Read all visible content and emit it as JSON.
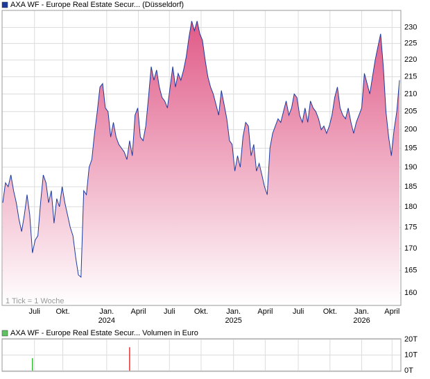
{
  "chart_data": [
    {
      "type": "area",
      "legend": "AXA WF - Europe Real Estate Secur... (Düsseldorf)",
      "annotation": "1 Tick = 1 Woche",
      "color": "#1c3a9e",
      "fill_top": "#e05a88",
      "fill_bottom": "#ffffff",
      "log_scale": true,
      "grid": true,
      "values": [
        181,
        186,
        185,
        188,
        184,
        181,
        177,
        174,
        178,
        183,
        178,
        169,
        172,
        173,
        181,
        188,
        186,
        181,
        184,
        176,
        182,
        180,
        185,
        181,
        178,
        175,
        173,
        168,
        164,
        163.5,
        184,
        183,
        190,
        192,
        199,
        205,
        212,
        213,
        206,
        205,
        198,
        202,
        198,
        196,
        195,
        194,
        192,
        197,
        193,
        204,
        206,
        198,
        197,
        201,
        209,
        218,
        214,
        217,
        212,
        209,
        208,
        206,
        212,
        218,
        212,
        216,
        214,
        217,
        221,
        227,
        232,
        229,
        232,
        228,
        226,
        220,
        215,
        212,
        210,
        207,
        204,
        211,
        207,
        203,
        197,
        196,
        189,
        193,
        190,
        198,
        202,
        201,
        193,
        196,
        189,
        191,
        188,
        185,
        183,
        195,
        199,
        201,
        203,
        202,
        205,
        208,
        204,
        206,
        210,
        209,
        204,
        202,
        206,
        202,
        208,
        206,
        205,
        203,
        200,
        201,
        199,
        201,
        204,
        209,
        212,
        206,
        204,
        203,
        206,
        202,
        199,
        202,
        204,
        206,
        216,
        213,
        210,
        215,
        220,
        224,
        228,
        218,
        205,
        198,
        193,
        200,
        205,
        214
      ],
      "xlim": [
        0,
        147
      ],
      "xticks": [
        {
          "value": 11.75,
          "label": "Juli"
        },
        {
          "value": 22.25,
          "label": "Okt."
        },
        {
          "value": 38.5,
          "label": "Jan.",
          "year": "2024"
        },
        {
          "value": 50.25,
          "label": "April"
        },
        {
          "value": 61.75,
          "label": "Juli"
        },
        {
          "value": 73.5,
          "label": "Okt."
        },
        {
          "value": 85.5,
          "label": "Jan.",
          "year": "2025"
        },
        {
          "value": 97.25,
          "label": "April"
        },
        {
          "value": 109.5,
          "label": "Juli"
        },
        {
          "value": 121.25,
          "label": "Okt."
        },
        {
          "value": 133,
          "label": "Jan.",
          "year": "2026"
        },
        {
          "value": 144.25,
          "label": "April"
        }
      ],
      "ylim": [
        157.3,
        235.4
      ],
      "yticks": [
        160,
        165,
        170,
        175,
        180,
        185,
        190,
        195,
        200,
        205,
        210,
        215,
        220,
        225,
        230
      ]
    },
    {
      "type": "volume",
      "legend": "AXA WF - Europe Real Estate Secur... Volumen in Euro",
      "legend_color": "#5fc45f",
      "grid": true,
      "x": [
        11,
        47
      ],
      "values": [
        8000,
        15000
      ],
      "colors": [
        "#33bb33",
        "#dd3333"
      ],
      "xlim": [
        0,
        147
      ],
      "ylim": [
        0,
        20000
      ],
      "yticks": [
        {
          "value": 0,
          "label": "0T"
        },
        {
          "value": 10000,
          "label": "10T"
        },
        {
          "value": 20000,
          "label": "20T"
        }
      ]
    }
  ]
}
